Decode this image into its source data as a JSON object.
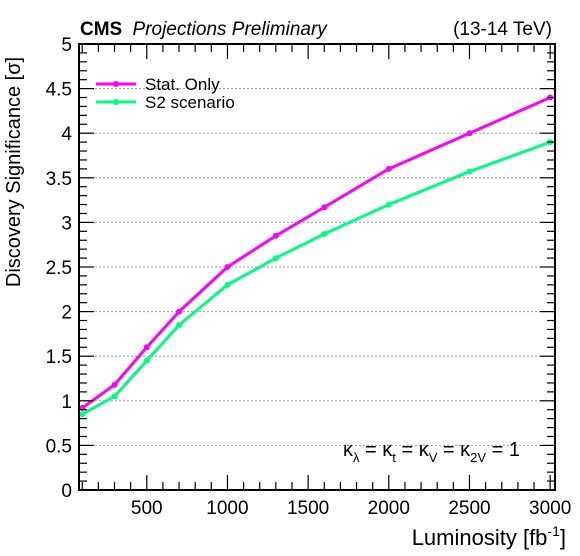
{
  "header": {
    "cms": "CMS",
    "preliminary": "Projections Preliminary",
    "energy": "(13-14 TeV)"
  },
  "annotation": {
    "kappa": "κ",
    "sub_lambda": "λ",
    "sub_t": "t",
    "sub_V": "V",
    "sub_2V": "2V",
    "eq": " = ",
    "value": "1"
  },
  "chart_data": {
    "type": "line",
    "xlabel_main": "Luminosity [fb",
    "xlabel_sup": "-1",
    "xlabel_end": "]",
    "ylabel": "Discovery Significance [σ]",
    "xlim": [
      80,
      3030
    ],
    "ylim": [
      0,
      5
    ],
    "x_ticks": [
      500,
      1000,
      1500,
      2000,
      2500,
      3000
    ],
    "x_tick_labels": [
      "500",
      "1000",
      "1500",
      "2000",
      "2500",
      "3000"
    ],
    "y_ticks": [
      0,
      0.5,
      1,
      1.5,
      2,
      2.5,
      3,
      3.5,
      4,
      4.5,
      5
    ],
    "y_tick_labels": [
      "0",
      "0.5",
      "1",
      "1.5",
      "2",
      "2.5",
      "3",
      "3.5",
      "4",
      "4.5",
      "5"
    ],
    "grid_y_major": true,
    "legend_position": "top-left",
    "series": [
      {
        "name": "Stat. Only",
        "color": "#ff00ff",
        "x": [
          100,
          300,
          500,
          700,
          1000,
          1300,
          1600,
          2000,
          2500,
          3000
        ],
        "y": [
          0.92,
          1.18,
          1.6,
          2.0,
          2.5,
          2.85,
          3.17,
          3.6,
          4.0,
          4.4
        ]
      },
      {
        "name": "S2 scenario",
        "color": "#00ff80",
        "x": [
          100,
          300,
          500,
          700,
          1000,
          1300,
          1600,
          2000,
          2500,
          3000
        ],
        "y": [
          0.85,
          1.05,
          1.45,
          1.85,
          2.3,
          2.6,
          2.87,
          3.2,
          3.57,
          3.9
        ]
      }
    ]
  }
}
